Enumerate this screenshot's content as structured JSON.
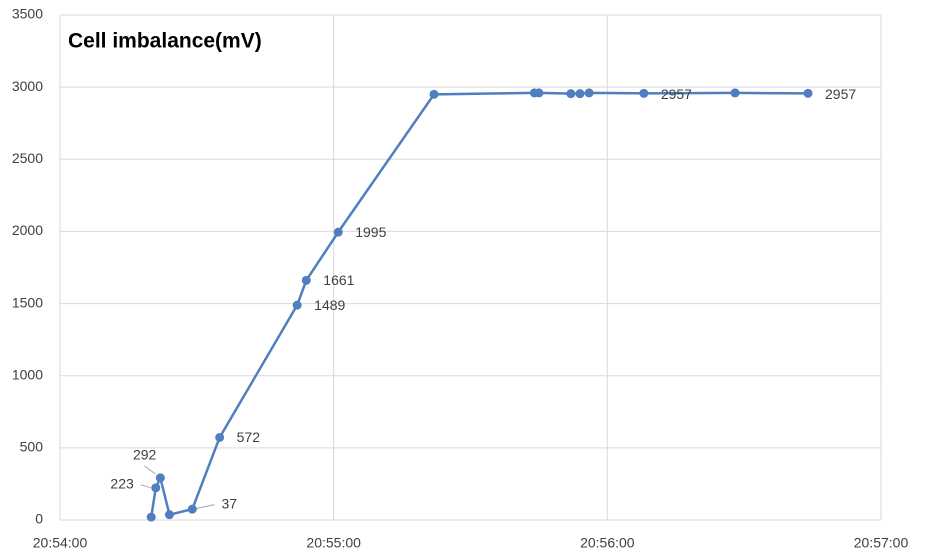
{
  "chart_data": {
    "type": "line",
    "title": "Cell imbalance(mV)",
    "x": [
      "20:54:20",
      "20:54:21",
      "20:54:22",
      "20:54:24",
      "20:54:29",
      "20:54:35",
      "20:54:52",
      "20:54:54",
      "20:55:01",
      "20:55:22",
      "20:55:44",
      "20:55:45",
      "20:55:52",
      "20:55:54",
      "20:55:56",
      "20:56:08",
      "20:56:28",
      "20:56:44"
    ],
    "series": [
      {
        "name": "Cell imbalance",
        "color": "#4f7fc0",
        "values": [
          20,
          223,
          292,
          37,
          75,
          572,
          1489,
          1661,
          1995,
          2950,
          2960,
          2960,
          2955,
          2955,
          2960,
          2957,
          2960,
          2957
        ],
        "value_labels": [
          null,
          "223",
          "292",
          "37",
          null,
          "572",
          "1489",
          "1661",
          "1995",
          null,
          null,
          null,
          null,
          null,
          null,
          "2957",
          null,
          "2957"
        ]
      }
    ],
    "xlim": [
      "20:54:00",
      "20:57:00"
    ],
    "xticks": [
      "20:54:00",
      "20:55:00",
      "20:56:00",
      "20:57:00"
    ],
    "ylim": [
      0,
      3500
    ],
    "yticks": [
      0,
      500,
      1000,
      1500,
      2000,
      2500,
      3000,
      3500
    ],
    "grid": true
  }
}
